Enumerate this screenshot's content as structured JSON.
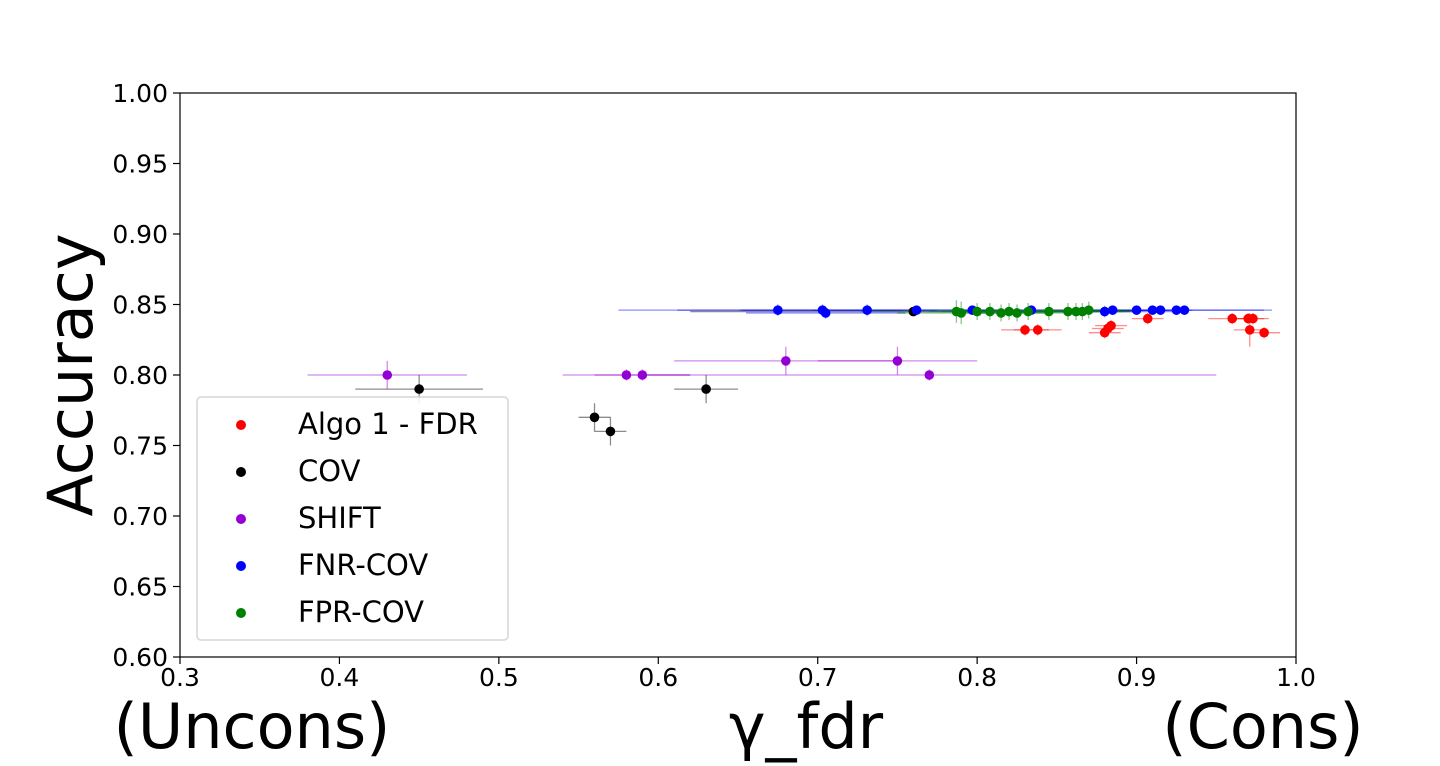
{
  "chart_data": {
    "type": "scatter",
    "title": "",
    "xlabel": "γ_fdr",
    "ylabel": "Accuracy",
    "x_extreme_labels": {
      "left": "(Uncons)",
      "right": "(Cons)"
    },
    "xlim": [
      0.3,
      1.0
    ],
    "ylim": [
      0.6,
      1.0
    ],
    "x_ticks": [
      0.3,
      0.4,
      0.5,
      0.6,
      0.7,
      0.8,
      0.9,
      1.0
    ],
    "x_tick_labels": [
      "0.3",
      "0.4",
      "0.5",
      "0.6",
      "0.7",
      "0.8",
      "0.9",
      "1.0"
    ],
    "y_ticks": [
      0.6,
      0.65,
      0.7,
      0.75,
      0.8,
      0.85,
      0.9,
      0.95,
      1.0
    ],
    "y_tick_labels": [
      "0.60",
      "0.65",
      "0.70",
      "0.75",
      "0.80",
      "0.85",
      "0.90",
      "0.95",
      "1.00"
    ],
    "grid": false,
    "legend_position": "lower-left",
    "series": [
      {
        "name": "Algo 1 - FDR",
        "color": "#ff0000",
        "points": [
          {
            "x": 0.83,
            "y": 0.832,
            "xerr": 0.015,
            "yerr": 0.004
          },
          {
            "x": 0.838,
            "y": 0.832,
            "xerr": 0.015,
            "yerr": 0.004
          },
          {
            "x": 0.88,
            "y": 0.83,
            "xerr": 0.01,
            "yerr": 0.004
          },
          {
            "x": 0.882,
            "y": 0.833,
            "xerr": 0.01,
            "yerr": 0.004
          },
          {
            "x": 0.884,
            "y": 0.835,
            "xerr": 0.01,
            "yerr": 0.004
          },
          {
            "x": 0.907,
            "y": 0.84,
            "xerr": 0.01,
            "yerr": 0.004
          },
          {
            "x": 0.96,
            "y": 0.84,
            "xerr": 0.015,
            "yerr": 0.004
          },
          {
            "x": 0.97,
            "y": 0.84,
            "xerr": 0.01,
            "yerr": 0.004
          },
          {
            "x": 0.973,
            "y": 0.84,
            "xerr": 0.01,
            "yerr": 0.004
          },
          {
            "x": 0.971,
            "y": 0.832,
            "xerr": 0.01,
            "yerr": 0.012
          },
          {
            "x": 0.98,
            "y": 0.83,
            "xerr": 0.01,
            "yerr": 0.004
          }
        ]
      },
      {
        "name": "COV",
        "color": "#000000",
        "points": [
          {
            "x": 0.45,
            "y": 0.79,
            "xerr": 0.04,
            "yerr": 0.01
          },
          {
            "x": 0.56,
            "y": 0.77,
            "xerr": 0.01,
            "yerr": 0.01
          },
          {
            "x": 0.57,
            "y": 0.76,
            "xerr": 0.01,
            "yerr": 0.01
          },
          {
            "x": 0.63,
            "y": 0.79,
            "xerr": 0.02,
            "yerr": 0.01
          },
          {
            "x": 0.76,
            "y": 0.845,
            "xerr": 0.14,
            "yerr": 0.003
          }
        ]
      },
      {
        "name": "SHIFT",
        "color": "#9400d3",
        "points": [
          {
            "x": 0.43,
            "y": 0.8,
            "xerr": 0.05,
            "yerr": 0.01
          },
          {
            "x": 0.58,
            "y": 0.8,
            "xerr": 0.04,
            "yerr": 0.004
          },
          {
            "x": 0.59,
            "y": 0.8,
            "xerr": 0.03,
            "yerr": 0.004
          },
          {
            "x": 0.68,
            "y": 0.81,
            "xerr": 0.07,
            "yerr": 0.01
          },
          {
            "x": 0.75,
            "y": 0.81,
            "xerr": 0.05,
            "yerr": 0.01
          },
          {
            "x": 0.77,
            "y": 0.8,
            "xerr": 0.18,
            "yerr": 0.004
          }
        ]
      },
      {
        "name": "FNR-COV",
        "color": "#0000ff",
        "points": [
          {
            "x": 0.675,
            "y": 0.846,
            "xerr": 0.1,
            "yerr": 0.004
          },
          {
            "x": 0.703,
            "y": 0.846,
            "xerr": 0.05,
            "yerr": 0.004
          },
          {
            "x": 0.705,
            "y": 0.844,
            "xerr": 0.05,
            "yerr": 0.004
          },
          {
            "x": 0.731,
            "y": 0.846,
            "xerr": 0.08,
            "yerr": 0.004
          },
          {
            "x": 0.762,
            "y": 0.846,
            "xerr": 0.15,
            "yerr": 0.003
          },
          {
            "x": 0.797,
            "y": 0.846,
            "xerr": 0.1,
            "yerr": 0.003
          },
          {
            "x": 0.834,
            "y": 0.846,
            "xerr": 0.05,
            "yerr": 0.003
          },
          {
            "x": 0.88,
            "y": 0.845,
            "xerr": 0.05,
            "yerr": 0.004
          },
          {
            "x": 0.885,
            "y": 0.846,
            "xerr": 0.02,
            "yerr": 0.003
          },
          {
            "x": 0.9,
            "y": 0.846,
            "xerr": 0.02,
            "yerr": 0.003
          },
          {
            "x": 0.91,
            "y": 0.846,
            "xerr": 0.02,
            "yerr": 0.003
          },
          {
            "x": 0.915,
            "y": 0.846,
            "xerr": 0.02,
            "yerr": 0.003
          },
          {
            "x": 0.925,
            "y": 0.846,
            "xerr": 0.06,
            "yerr": 0.003
          },
          {
            "x": 0.93,
            "y": 0.846,
            "xerr": 0.05,
            "yerr": 0.003
          }
        ]
      },
      {
        "name": "FPR-COV",
        "color": "#008000",
        "points": [
          {
            "x": 0.787,
            "y": 0.845,
            "xerr": 0.06,
            "yerr": 0.008
          },
          {
            "x": 0.79,
            "y": 0.844,
            "xerr": 0.04,
            "yerr": 0.008
          },
          {
            "x": 0.8,
            "y": 0.845,
            "xerr": 0.03,
            "yerr": 0.006
          },
          {
            "x": 0.808,
            "y": 0.845,
            "xerr": 0.03,
            "yerr": 0.006
          },
          {
            "x": 0.815,
            "y": 0.844,
            "xerr": 0.03,
            "yerr": 0.006
          },
          {
            "x": 0.82,
            "y": 0.845,
            "xerr": 0.03,
            "yerr": 0.006
          },
          {
            "x": 0.825,
            "y": 0.844,
            "xerr": 0.03,
            "yerr": 0.006
          },
          {
            "x": 0.832,
            "y": 0.845,
            "xerr": 0.03,
            "yerr": 0.006
          },
          {
            "x": 0.845,
            "y": 0.845,
            "xerr": 0.03,
            "yerr": 0.006
          },
          {
            "x": 0.857,
            "y": 0.845,
            "xerr": 0.03,
            "yerr": 0.006
          },
          {
            "x": 0.862,
            "y": 0.845,
            "xerr": 0.03,
            "yerr": 0.006
          },
          {
            "x": 0.866,
            "y": 0.845,
            "xerr": 0.03,
            "yerr": 0.006
          },
          {
            "x": 0.87,
            "y": 0.846,
            "xerr": 0.03,
            "yerr": 0.006
          }
        ]
      }
    ]
  }
}
